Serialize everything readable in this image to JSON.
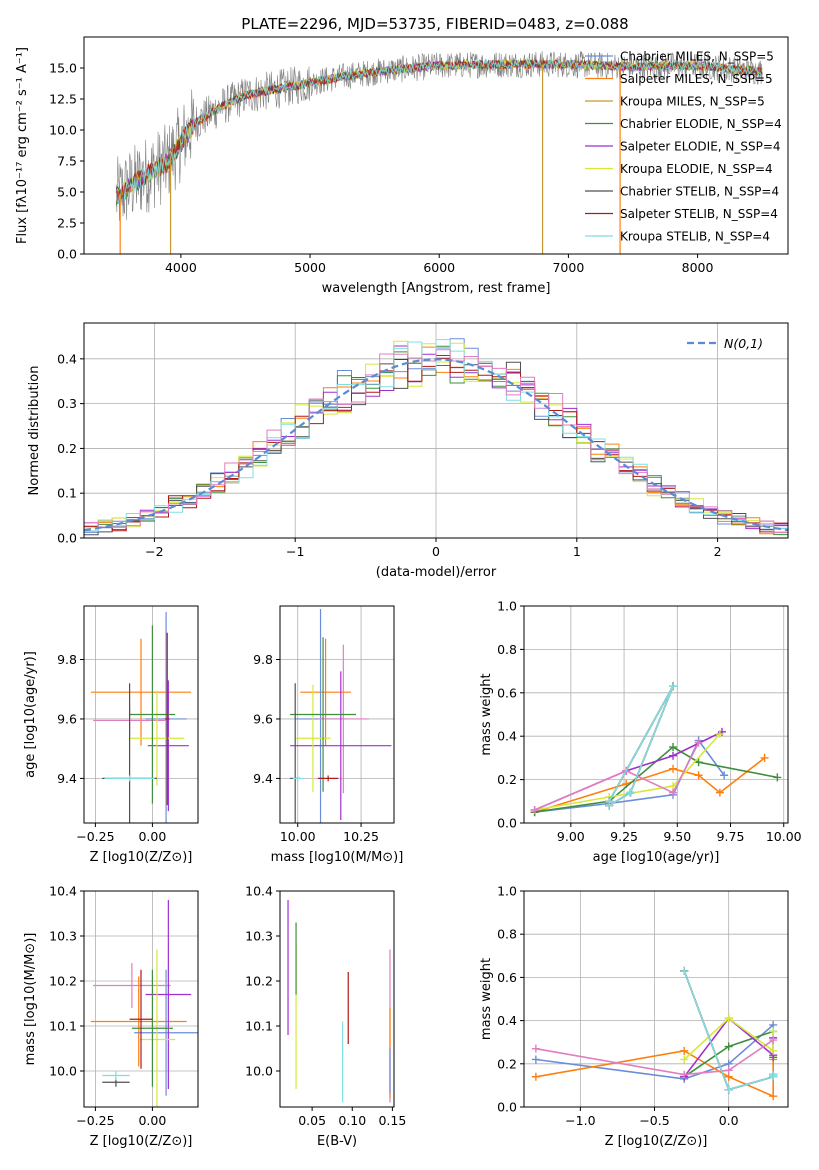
{
  "title": "PLATE=2296, MJD=53735, FIBERID=0483, z=0.088",
  "chart_data": [
    {
      "type": "line",
      "id": "spectrum",
      "xlabel": "wavelength [Angstrom, rest frame]",
      "ylabel": "Flux [fλ10⁻¹⁷ erg cm⁻² s⁻¹ A⁻¹]",
      "xlim": [
        3250,
        8700
      ],
      "ylim": [
        0,
        17.5
      ],
      "xticks": [
        4000,
        5000,
        6000,
        7000,
        8000
      ],
      "yticks": [
        0.0,
        2.5,
        5.0,
        7.5,
        10.0,
        12.5,
        15.0
      ],
      "legend_position": "upper-right",
      "continuum_x": [
        3500,
        3700,
        3900,
        4000,
        4100,
        4300,
        4500,
        4700,
        5000,
        5300,
        5600,
        6000,
        6500,
        7000,
        7500,
        8000,
        8500
      ],
      "continuum_y": [
        4.6,
        6.2,
        7.4,
        9.0,
        10.5,
        11.8,
        12.8,
        13.2,
        13.8,
        14.4,
        14.8,
        15.2,
        15.3,
        15.3,
        15.1,
        15.2,
        14.7
      ],
      "spikes": [
        {
          "x": 3530,
          "y_min": 0.0
        },
        {
          "x": 3920,
          "y_min": 0.0
        },
        {
          "x": 6800,
          "y_min": 0.0
        },
        {
          "x": 7400,
          "y_min": 0.0
        }
      ],
      "series": [
        {
          "name": "Chabrier MILES, N_SSP=5",
          "color": "#6a8dd9"
        },
        {
          "name": "Salpeter MILES, N_SSP=5",
          "color": "#ff7f0e"
        },
        {
          "name": "Kroupa MILES, N_SSP=5",
          "color": "#c8972f"
        },
        {
          "name": "Chabrier ELODIE, N_SSP=4",
          "color": "#3f8f3f"
        },
        {
          "name": "Salpeter ELODIE, N_SSP=4",
          "color": "#a02fd0"
        },
        {
          "name": "Kroupa ELODIE, N_SSP=4",
          "color": "#d6e83a"
        },
        {
          "name": "Chabrier STELIB, N_SSP=4",
          "color": "#505050"
        },
        {
          "name": "Salpeter STELIB, N_SSP=4",
          "color": "#b01818"
        },
        {
          "name": "Kroupa STELIB, N_SSP=4",
          "color": "#7fdfe0"
        }
      ],
      "data_color": "#7f7f7f"
    },
    {
      "type": "line",
      "id": "residuals",
      "xlabel": "(data-model)/error",
      "ylabel": "Normed distribution",
      "xlim": [
        -2.5,
        2.5
      ],
      "ylim": [
        0,
        0.48
      ],
      "xticks": [
        -2,
        -1,
        0,
        1,
        2
      ],
      "yticks": [
        0.0,
        0.1,
        0.2,
        0.3,
        0.4
      ],
      "grid": true,
      "reference_curve": {
        "name": "N(0,1)",
        "color": "#5b8bd6",
        "style": "dashed"
      },
      "legend_position": "upper-right",
      "bin_width": 0.1,
      "step_colors": [
        "#6a8dd9",
        "#ff7f0e",
        "#3f8f3f",
        "#a02fd0",
        "#d6e83a",
        "#505050",
        "#b01818",
        "#7fdfe0",
        "#e07fbf"
      ]
    },
    {
      "type": "scatter",
      "id": "age-vs-Z",
      "xlabel": "Z [log10(Z/Z⊙)]",
      "ylabel": "age  [log10(age/yr)]",
      "xlim": [
        -0.3,
        0.2
      ],
      "ylim": [
        9.25,
        9.98
      ],
      "xticks": [
        -0.25,
        0.0
      ],
      "yticks": [
        9.4,
        9.6,
        9.8
      ],
      "grid": true,
      "points": [
        {
          "x": -0.05,
          "y": 9.69,
          "xerr": 0.22,
          "yerr": 0.18,
          "color": "#ff7f0e"
        },
        {
          "x": 0.06,
          "y": 9.6,
          "xerr": 0.09,
          "yerr": 0.36,
          "color": "#6a8dd9"
        },
        {
          "x": -0.1,
          "y": 9.595,
          "xerr": 0.16,
          "yerr": 0.05,
          "color": "#e07fbf"
        },
        {
          "x": 0.07,
          "y": 9.51,
          "xerr": 0.09,
          "yerr": 0.22,
          "color": "#a02fd0"
        },
        {
          "x": 0.02,
          "y": 9.535,
          "xerr": 0.12,
          "yerr": 0.16,
          "color": "#d6e83a"
        },
        {
          "x": 0.0,
          "y": 9.615,
          "xerr": 0.1,
          "yerr": 0.3,
          "color": "#3f8f3f"
        },
        {
          "x": -0.1,
          "y": 9.4,
          "xerr": 0.12,
          "yerr": 0.32,
          "color": "#505050"
        },
        {
          "x": 0.065,
          "y": 9.6,
          "xerr": 0.01,
          "yerr": 0.29,
          "color": "#b01818"
        },
        {
          "x": -0.1,
          "y": 9.4,
          "xerr": 0.11,
          "yerr": 0.01,
          "color": "#7fdfe0"
        }
      ]
    },
    {
      "type": "scatter",
      "id": "age-vs-mass",
      "xlabel": "mass [log10(M/M⊙)]",
      "ylabel": "",
      "xlim": [
        9.93,
        10.38
      ],
      "ylim": [
        9.25,
        9.98
      ],
      "xticks": [
        10.0,
        10.25
      ],
      "yticks": [
        9.4,
        9.6,
        9.8
      ],
      "grid": true,
      "points": [
        {
          "x": 10.11,
          "y": 9.69,
          "xerr": 0.1,
          "yerr": 0.18,
          "color": "#ff7f0e"
        },
        {
          "x": 10.09,
          "y": 9.6,
          "xerr": 0.1,
          "yerr": 0.37,
          "color": "#6a8dd9"
        },
        {
          "x": 10.18,
          "y": 9.6,
          "xerr": 0.1,
          "yerr": 0.25,
          "color": "#e07fbf"
        },
        {
          "x": 10.17,
          "y": 9.51,
          "xerr": 0.2,
          "yerr": 0.25,
          "color": "#a02fd0"
        },
        {
          "x": 10.06,
          "y": 9.535,
          "xerr": 0.07,
          "yerr": 0.18,
          "color": "#d6e83a"
        },
        {
          "x": 10.1,
          "y": 9.615,
          "xerr": 0.13,
          "yerr": 0.26,
          "color": "#3f8f3f"
        },
        {
          "x": 9.99,
          "y": 9.4,
          "xerr": 0.02,
          "yerr": 0.32,
          "color": "#505050"
        },
        {
          "x": 10.12,
          "y": 9.4,
          "xerr": 0.04,
          "yerr": 0.01,
          "color": "#b01818"
        },
        {
          "x": 10.0,
          "y": 9.4,
          "xerr": 0.02,
          "yerr": 0.01,
          "color": "#7fdfe0"
        }
      ]
    },
    {
      "type": "line",
      "id": "mass-weight-vs-age",
      "xlabel": "age  [log10(age/yr)]",
      "ylabel": "mass weight",
      "xlim": [
        8.78,
        10.02
      ],
      "ylim": [
        0.0,
        1.0
      ],
      "xticks": [
        9.0,
        9.25,
        9.5,
        9.75,
        10.0
      ],
      "yticks": [
        0.0,
        0.2,
        0.4,
        0.6,
        0.8,
        1.0
      ],
      "grid": true,
      "marker": "+",
      "series": [
        {
          "color": "#6a8dd9",
          "x": [
            8.83,
            9.18,
            9.48,
            9.6,
            9.72
          ],
          "y": [
            0.05,
            0.09,
            0.13,
            0.38,
            0.22
          ]
        },
        {
          "color": "#ff7f0e",
          "x": [
            8.83,
            9.26,
            9.48,
            9.6,
            9.7,
            9.91
          ],
          "y": [
            0.05,
            0.18,
            0.25,
            0.22,
            0.14,
            0.3
          ]
        },
        {
          "color": "#3f8f3f",
          "x": [
            8.83,
            9.18,
            9.48,
            9.6,
            9.97
          ],
          "y": [
            0.05,
            0.1,
            0.35,
            0.28,
            0.21
          ]
        },
        {
          "color": "#a02fd0",
          "x": [
            8.83,
            9.26,
            9.48,
            9.71
          ],
          "y": [
            0.06,
            0.24,
            0.31,
            0.42
          ]
        },
        {
          "color": "#d6e83a",
          "x": [
            8.83,
            9.18,
            9.48,
            9.7
          ],
          "y": [
            0.06,
            0.12,
            0.17,
            0.41
          ]
        },
        {
          "color": "#e07fbf",
          "x": [
            8.83,
            9.26,
            9.48,
            9.6
          ],
          "y": [
            0.06,
            0.24,
            0.14,
            0.37
          ]
        },
        {
          "color": "#505050",
          "x": [
            9.18,
            9.28,
            9.48,
            9.18
          ],
          "y": [
            0.08,
            0.14,
            0.63,
            0.1
          ]
        },
        {
          "color": "#b01818",
          "x": [
            9.18,
            9.28,
            9.48,
            9.18
          ],
          "y": [
            0.08,
            0.14,
            0.63,
            0.1
          ]
        },
        {
          "color": "#7fdfe0",
          "x": [
            9.18,
            9.28,
            9.48,
            9.18
          ],
          "y": [
            0.08,
            0.14,
            0.63,
            0.1
          ]
        }
      ]
    },
    {
      "type": "scatter",
      "id": "mass-vs-Z",
      "xlabel": "Z [log10(Z/Z⊙)]",
      "ylabel": "mass [log10(M/M⊙)]",
      "xlim": [
        -0.3,
        0.2
      ],
      "ylim": [
        9.92,
        10.4
      ],
      "xticks": [
        -0.25,
        0.0
      ],
      "yticks": [
        10.0,
        10.1,
        10.2,
        10.3,
        10.4
      ],
      "grid": true,
      "points": [
        {
          "x": -0.06,
          "y": 10.11,
          "xerr": 0.21,
          "yerr": 0.1,
          "color": "#ff7f0e"
        },
        {
          "x": 0.06,
          "y": 10.085,
          "xerr": 0.14,
          "yerr": 0.14,
          "color": "#6a8dd9"
        },
        {
          "x": -0.09,
          "y": 10.19,
          "xerr": 0.17,
          "yerr": 0.05,
          "color": "#e07fbf"
        },
        {
          "x": 0.07,
          "y": 10.17,
          "xerr": 0.1,
          "yerr": 0.21,
          "color": "#a02fd0"
        },
        {
          "x": 0.02,
          "y": 10.07,
          "xerr": 0.08,
          "yerr": 0.2,
          "color": "#d6e83a"
        },
        {
          "x": 0.0,
          "y": 10.095,
          "xerr": 0.09,
          "yerr": 0.13,
          "color": "#3f8f3f"
        },
        {
          "x": -0.16,
          "y": 9.975,
          "xerr": 0.06,
          "yerr": 0.01,
          "color": "#505050"
        },
        {
          "x": -0.05,
          "y": 10.115,
          "xerr": 0.05,
          "yerr": 0.11,
          "color": "#b01818"
        },
        {
          "x": -0.16,
          "y": 9.99,
          "xerr": 0.06,
          "yerr": 0.01,
          "color": "#7fdfe0"
        }
      ]
    },
    {
      "type": "scatter",
      "id": "mass-vs-ebv",
      "xlabel": "E(B-V)",
      "ylabel": "",
      "xlim": [
        0.01,
        0.152
      ],
      "ylim": [
        9.92,
        10.4
      ],
      "xticks": [
        0.05,
        0.1,
        0.15
      ],
      "yticks": [
        10.0,
        10.1,
        10.2,
        10.3,
        10.4
      ],
      "points": [
        {
          "x": 0.02,
          "y": 10.23,
          "yerr": 0.15,
          "color": "#a02fd0"
        },
        {
          "x": 0.03,
          "y": 10.12,
          "yerr": 0.16,
          "color": "#d6e83a"
        },
        {
          "x": 0.03,
          "y": 10.25,
          "yerr": 0.08,
          "color": "#3f8f3f"
        },
        {
          "x": 0.088,
          "y": 10.02,
          "yerr": 0.09,
          "color": "#7fdfe0"
        },
        {
          "x": 0.095,
          "y": 10.14,
          "yerr": 0.08,
          "color": "#b01818"
        },
        {
          "x": 0.147,
          "y": 10.1,
          "yerr": 0.17,
          "color": "#e07fbf"
        },
        {
          "x": 0.147,
          "y": 10.04,
          "yerr": 0.1,
          "color": "#ff7f0e"
        },
        {
          "x": 0.147,
          "y": 10.0,
          "yerr": 0.05,
          "color": "#6a8dd9"
        }
      ]
    },
    {
      "type": "line",
      "id": "mass-weight-vs-Z",
      "xlabel": "Z [log10(Z/Z⊙)]",
      "ylabel": "mass weight",
      "xlim": [
        -1.38,
        0.4
      ],
      "ylim": [
        0.0,
        1.0
      ],
      "xticks": [
        -1.0,
        -0.5,
        0.0
      ],
      "yticks": [
        0.0,
        0.2,
        0.4,
        0.6,
        0.8,
        1.0
      ],
      "grid": true,
      "marker": "+",
      "series": [
        {
          "color": "#6a8dd9",
          "x": [
            -1.3,
            -0.3,
            0.0,
            0.3
          ],
          "y": [
            0.22,
            0.13,
            0.2,
            0.38
          ]
        },
        {
          "color": "#ff7f0e",
          "x": [
            -1.3,
            -0.3,
            0.0,
            0.3,
            0.3
          ],
          "y": [
            0.14,
            0.26,
            0.14,
            0.05,
            0.22
          ]
        },
        {
          "color": "#3f8f3f",
          "x": [
            -0.3,
            0.0,
            0.3,
            0.3
          ],
          "y": [
            0.14,
            0.28,
            0.35,
            0.23
          ]
        },
        {
          "color": "#a02fd0",
          "x": [
            -0.3,
            0.0,
            0.3,
            0.3
          ],
          "y": [
            0.14,
            0.41,
            0.24,
            0.32
          ]
        },
        {
          "color": "#d6e83a",
          "x": [
            -0.3,
            0.0,
            0.3,
            0.3
          ],
          "y": [
            0.22,
            0.41,
            0.26,
            0.35
          ]
        },
        {
          "color": "#e07fbf",
          "x": [
            -1.3,
            -0.3,
            0.0,
            0.3
          ],
          "y": [
            0.27,
            0.15,
            0.17,
            0.31
          ]
        },
        {
          "color": "#505050",
          "x": [
            -0.3,
            0.0,
            0.3,
            0.3
          ],
          "y": [
            0.63,
            0.08,
            0.14,
            0.15
          ]
        },
        {
          "color": "#b01818",
          "x": [
            -0.3,
            0.0,
            0.3,
            0.3
          ],
          "y": [
            0.63,
            0.08,
            0.14,
            0.15
          ]
        },
        {
          "color": "#7fdfe0",
          "x": [
            -0.3,
            0.0,
            0.3,
            0.3
          ],
          "y": [
            0.63,
            0.08,
            0.14,
            0.15
          ]
        }
      ]
    }
  ]
}
